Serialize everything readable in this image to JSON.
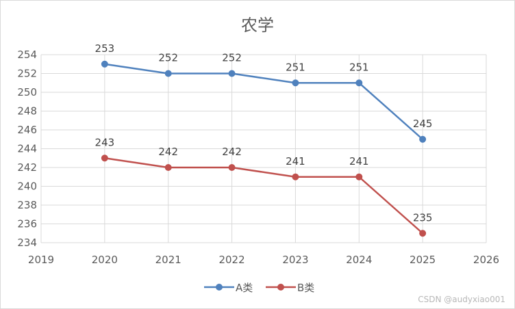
{
  "chart_data": {
    "type": "line",
    "title": "农学",
    "x": [
      2020,
      2021,
      2022,
      2023,
      2024,
      2025
    ],
    "xlim": [
      2019,
      2026
    ],
    "xticks": [
      2019,
      2020,
      2021,
      2022,
      2023,
      2024,
      2025,
      2026
    ],
    "ylim": [
      234,
      254
    ],
    "yticks": [
      234,
      236,
      238,
      240,
      242,
      244,
      246,
      248,
      250,
      252,
      254
    ],
    "grid": true,
    "legend": "bottom",
    "series": [
      {
        "name": "A类",
        "color": "#4f81bd",
        "values": [
          253,
          252,
          252,
          251,
          251,
          245
        ]
      },
      {
        "name": "B类",
        "color": "#c0504d",
        "values": [
          243,
          242,
          242,
          241,
          241,
          235
        ]
      }
    ]
  },
  "watermark": "CSDN @audyxiao001"
}
